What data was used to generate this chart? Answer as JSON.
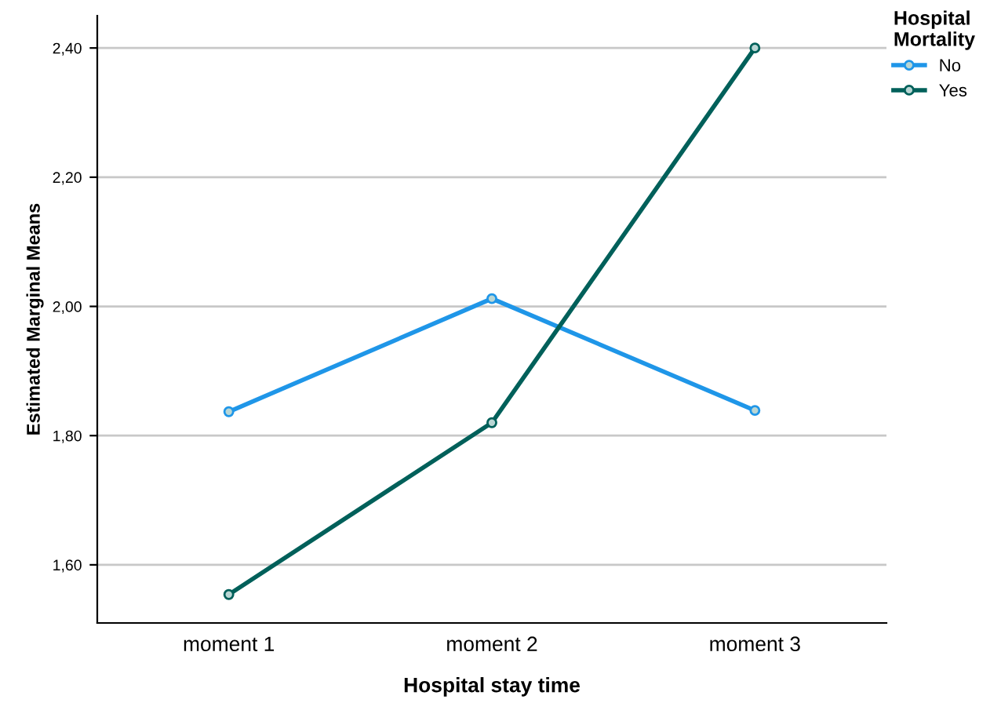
{
  "chart_data": {
    "type": "line",
    "xlabel": "Hospital stay time",
    "ylabel": "Estimated Marginal Means",
    "legend_title": "Hospital\nMortality",
    "categories": [
      "moment 1",
      "moment 2",
      "moment 3"
    ],
    "series": [
      {
        "name": "No",
        "color": "#1f96e8",
        "values": [
          1.837,
          2.012,
          1.839
        ]
      },
      {
        "name": "Yes",
        "color": "#00605a",
        "values": [
          1.554,
          1.82,
          2.4
        ]
      }
    ],
    "ylim": [
      1.51,
      2.45
    ],
    "yticks": [
      {
        "value": 1.6,
        "label": "1,60"
      },
      {
        "value": 1.8,
        "label": "1,80"
      },
      {
        "value": 2.0,
        "label": "2,00"
      },
      {
        "value": 2.2,
        "label": "2,20"
      },
      {
        "value": 2.4,
        "label": "2,40"
      }
    ],
    "grid": "y",
    "legend": "top right",
    "marker": "circle",
    "line_style": "solid"
  }
}
